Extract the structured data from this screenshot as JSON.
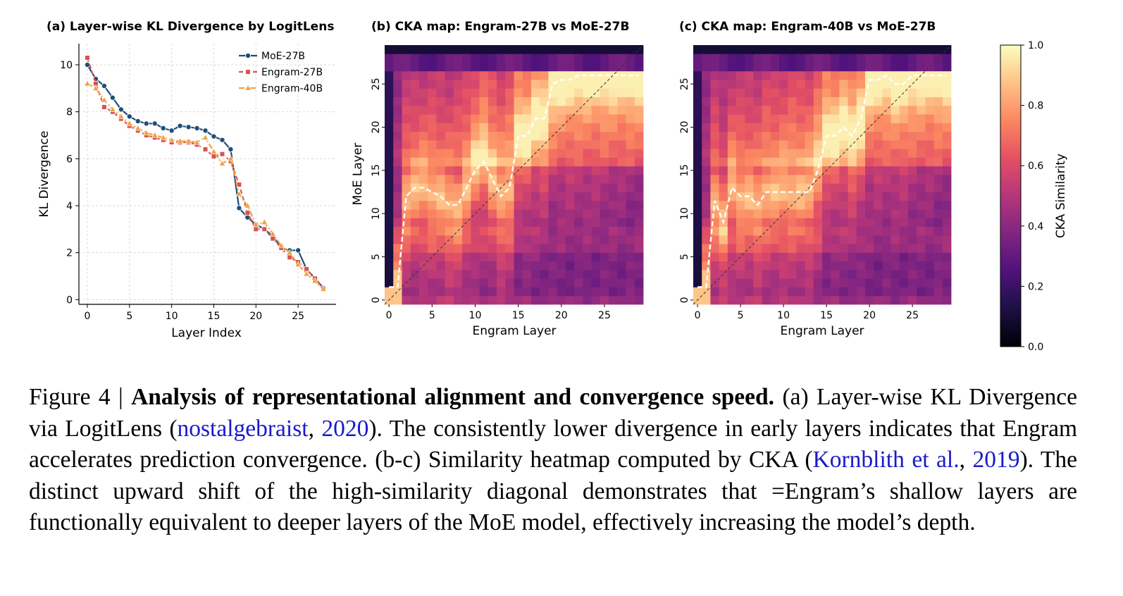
{
  "chart_data": [
    {
      "type": "line",
      "title": "(a) Layer-wise KL Divergence by LogitLens",
      "xlabel": "Layer Index",
      "ylabel": "KL Divergence",
      "xlim": [
        -1,
        29.5
      ],
      "ylim": [
        -0.2,
        10.9
      ],
      "xticks": [
        0,
        5,
        10,
        15,
        20,
        25
      ],
      "yticks": [
        0,
        2,
        4,
        6,
        8,
        10
      ],
      "grid": true,
      "legend": "top-right",
      "x": [
        0,
        1,
        2,
        3,
        4,
        5,
        6,
        7,
        8,
        9,
        10,
        11,
        12,
        13,
        14,
        15,
        16,
        17,
        18,
        19,
        20,
        21,
        22,
        23,
        24,
        25,
        26,
        27,
        28
      ],
      "series": [
        {
          "name": "MoE-27B",
          "color": "#1f4e79",
          "marker": "circle",
          "dash": "solid",
          "values": [
            10.0,
            9.4,
            9.1,
            8.6,
            8.1,
            7.8,
            7.6,
            7.5,
            7.5,
            7.3,
            7.2,
            7.4,
            7.35,
            7.3,
            7.2,
            6.95,
            6.8,
            6.4,
            3.9,
            3.5,
            3.2,
            3.0,
            2.7,
            2.2,
            2.1,
            2.1,
            1.3,
            0.9,
            0.5
          ]
        },
        {
          "name": "Engram-27B",
          "color": "#d9534f",
          "marker": "square",
          "dash": "6,4",
          "values": [
            10.3,
            9.2,
            8.2,
            8.0,
            7.7,
            7.4,
            7.2,
            7.0,
            6.9,
            6.8,
            6.7,
            6.7,
            6.7,
            6.6,
            6.4,
            6.1,
            6.2,
            5.9,
            4.9,
            3.7,
            3.0,
            3.0,
            2.6,
            2.2,
            1.8,
            1.6,
            1.3,
            0.9,
            0.45
          ]
        },
        {
          "name": "Engram-40B",
          "color": "#f0a142",
          "marker": "triangle",
          "dash": "8,3,2,3",
          "values": [
            9.2,
            9.0,
            8.5,
            8.1,
            7.8,
            7.5,
            7.3,
            7.1,
            7.0,
            6.9,
            6.8,
            6.75,
            6.75,
            6.7,
            6.9,
            6.3,
            5.8,
            6.0,
            4.5,
            4.0,
            3.2,
            3.3,
            2.8,
            2.3,
            2.0,
            1.5,
            1.1,
            0.8,
            0.45
          ]
        }
      ]
    },
    {
      "type": "heatmap",
      "title": "(b) CKA map: Engram-27B vs MoE-27B",
      "xlabel": "Engram Layer",
      "ylabel": "MoE Layer",
      "rows": 30,
      "cols": 30,
      "xticks": [
        0,
        5,
        10,
        15,
        20,
        25
      ],
      "yticks": [
        0,
        5,
        10,
        15,
        20,
        25
      ],
      "colorscale": "magma",
      "clim": [
        0.0,
        1.0
      ],
      "diagonal_reference": true,
      "argmax_path": {
        "x": [
          0,
          1,
          2,
          3,
          4,
          5,
          6,
          7,
          8,
          9,
          10,
          11,
          12,
          13,
          14,
          15,
          16,
          17,
          18,
          19,
          20,
          21,
          22,
          23,
          24,
          25,
          26,
          27,
          28,
          29
        ],
        "y": [
          1.5,
          1.5,
          12,
          13,
          13,
          12.5,
          12,
          11,
          11,
          13,
          15,
          16,
          14,
          12,
          13,
          19,
          19,
          21,
          21,
          25,
          25.5,
          25.5,
          26,
          26,
          26,
          26,
          26,
          26,
          26,
          26
        ]
      }
    },
    {
      "type": "heatmap",
      "title": "(c) CKA map: Engram-40B vs MoE-27B",
      "xlabel": "Engram Layer",
      "ylabel": "",
      "rows": 30,
      "cols": 30,
      "xticks": [
        0,
        5,
        10,
        15,
        20,
        25
      ],
      "yticks": [
        0,
        5,
        10,
        15,
        20,
        25
      ],
      "colorscale": "magma",
      "clim": [
        0.0,
        1.0
      ],
      "diagonal_reference": true,
      "argmax_path": {
        "x": [
          0,
          1,
          2,
          3,
          4,
          5,
          6,
          7,
          8,
          9,
          10,
          11,
          12,
          13,
          14,
          15,
          16,
          17,
          18,
          19,
          20,
          21,
          22,
          23,
          24,
          25,
          26,
          27,
          28,
          29
        ],
        "y": [
          1.5,
          1.5,
          11.5,
          9,
          13,
          12,
          12,
          11,
          12.5,
          12.5,
          12.5,
          12.5,
          12.5,
          12.5,
          15,
          19,
          19,
          20,
          19,
          21,
          25.5,
          25.5,
          26,
          25,
          25,
          26,
          26,
          26,
          26,
          26
        ]
      }
    }
  ],
  "colorbar": {
    "label": "CKA Similarity",
    "ticks": [
      0.0,
      0.2,
      0.4,
      0.6,
      0.8,
      1.0
    ],
    "tick_labels": [
      "0.0",
      "0.2",
      "0.4",
      "0.6",
      "0.8",
      "1.0"
    ]
  },
  "caption": {
    "prefix": "Figure 4 | ",
    "bold": "Analysis of representational alignment and convergence speed.",
    "text1": " (a) Layer-wise KL Divergence via LogitLens (",
    "cite1_author": "nostalgebraist",
    "cite1_sep": ", ",
    "cite1_year": "2020",
    "text2": "). The consistently lower divergence in early layers indicates that Engram accelerates prediction convergence. (b-c) Similarity heatmap computed by CKA (",
    "cite2_author": "Kornblith et al.",
    "cite2_sep": ", ",
    "cite2_year": "2019",
    "text3": "). The distinct upward shift of the high-similarity diagonal demonstrates that =Engram’s shallow layers are functionally equivalent to deeper layers of the MoE model, effectively increasing the model’s depth."
  }
}
